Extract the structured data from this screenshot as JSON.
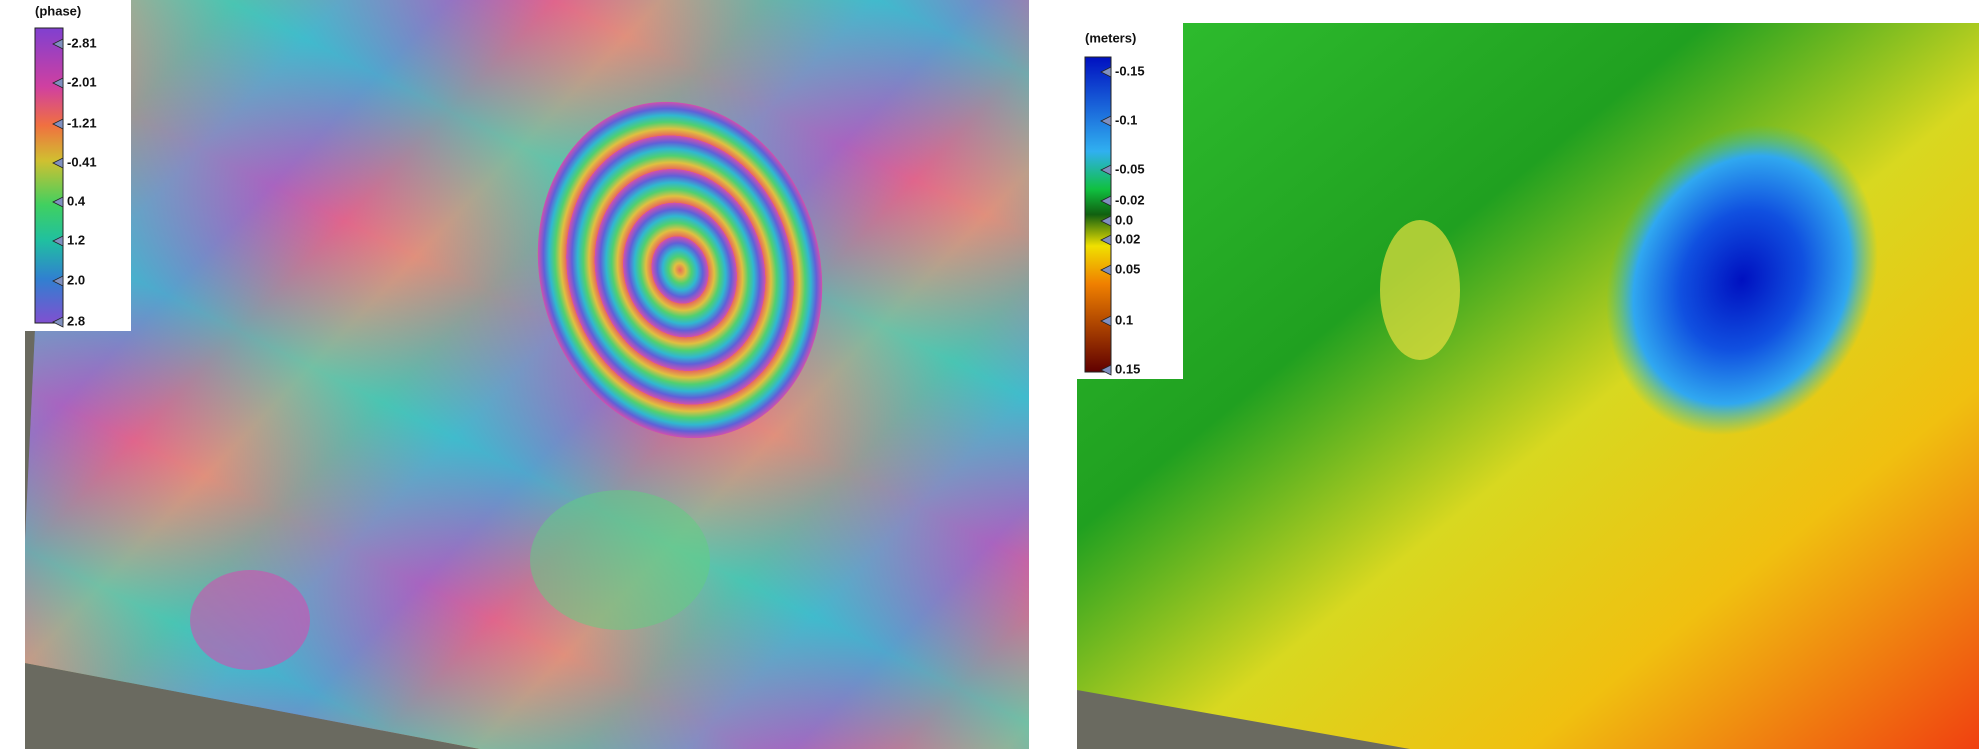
{
  "panels": [
    {
      "legend": {
        "title": "(phase)",
        "ticks": [
          "-2.81",
          "-2.01",
          "-1.21",
          "-0.41",
          "0.4",
          "1.2",
          "2.0",
          "2.8"
        ]
      }
    },
    {
      "legend": {
        "title": "(meters)",
        "ticks": [
          "-0.15",
          "-0.1",
          "-0.05",
          "-0.02",
          "0.0",
          "0.02",
          "0.05",
          "0.1",
          "0.15"
        ]
      }
    }
  ]
}
